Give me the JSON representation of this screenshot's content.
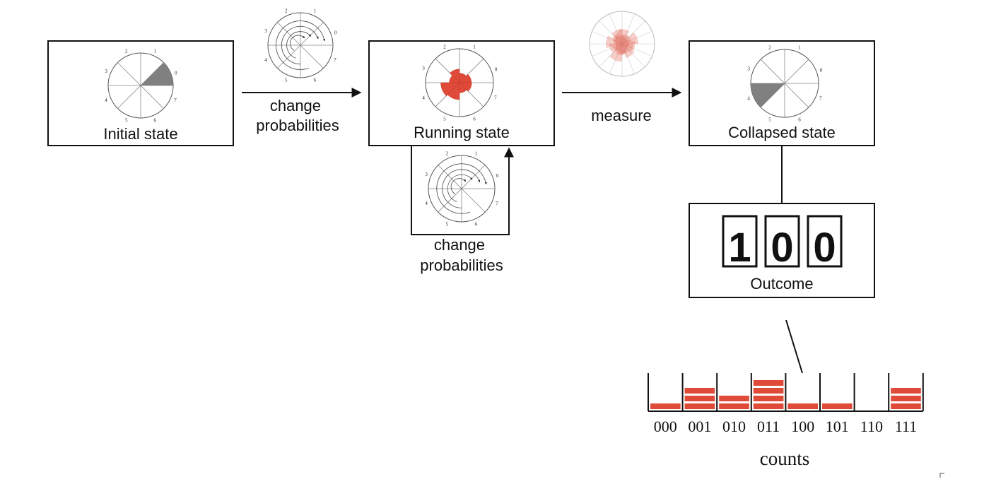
{
  "labels": {
    "initial_state": "Initial state",
    "change_probabilities_line1": "change",
    "change_probabilities_line2": "probabilities",
    "running_state": "Running state",
    "measure": "measure",
    "collapsed_state": "Collapsed state",
    "outcome": "Outcome",
    "counts": "counts"
  },
  "wheel_ticks": [
    "0",
    "1",
    "2",
    "3",
    "4",
    "5",
    "6",
    "7"
  ],
  "outcome_digits": [
    "1",
    "0",
    "0"
  ],
  "histogram": {
    "bins": [
      "000",
      "001",
      "010",
      "011",
      "100",
      "101",
      "110",
      "111"
    ],
    "counts": [
      1,
      3,
      2,
      4,
      1,
      1,
      0,
      3
    ]
  },
  "colors": {
    "accent_red": "#e04a38",
    "state_gray": "#808080",
    "line": "#111111"
  },
  "icons": {
    "initial_wheel": "probability-wheel-icon",
    "transform_wheel": "state-transition-wheel-icon",
    "running_wheel": "rose-wheel-icon",
    "measurement_cloud": "measurement-rose-icon",
    "collapsed_wheel": "probability-wheel-icon"
  }
}
